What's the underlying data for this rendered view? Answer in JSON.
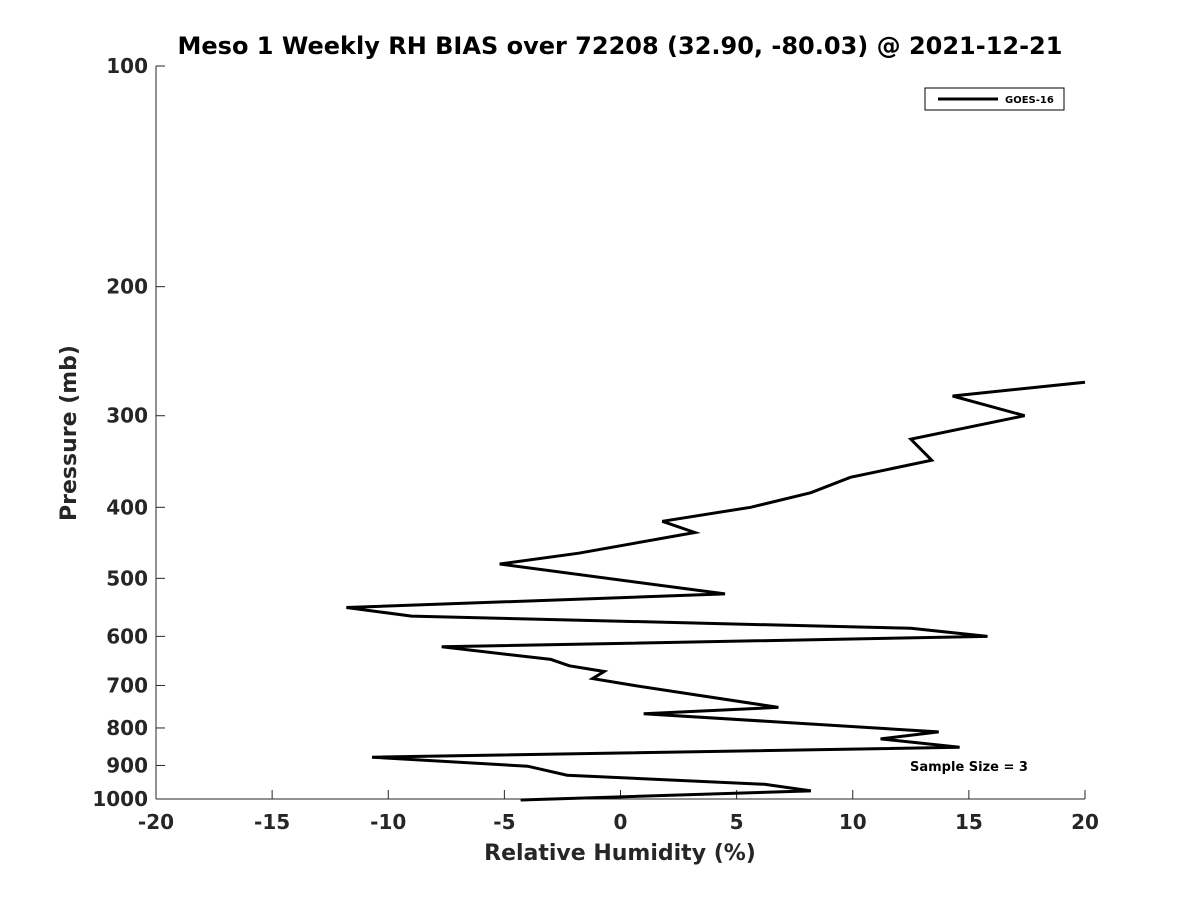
{
  "chart_data": {
    "type": "line",
    "title": "Meso 1 Weekly RH BIAS over 72208 (32.90, -80.03) @ 2021-12-21",
    "xlabel": "Relative Humidity (%)",
    "ylabel": "Pressure (mb)",
    "xlim": [
      -20,
      20
    ],
    "ylim": [
      100,
      1000
    ],
    "y_scale": "log",
    "y_reversed": true,
    "x_ticks": [
      "-20",
      "-15",
      "-10",
      "-5",
      "0",
      "5",
      "10",
      "15",
      "20"
    ],
    "y_ticks": [
      "100",
      "200",
      "300",
      "400",
      "500",
      "600",
      "700",
      "800",
      "900",
      "1000"
    ],
    "grid": false,
    "legend_position": "top-right",
    "series": [
      {
        "name": "GOES-16",
        "color": "#000000",
        "x": [
          20.0,
          14.3,
          17.4,
          12.5,
          13.4,
          9.9,
          8.2,
          5.6,
          1.8,
          3.2,
          -1.8,
          -5.2,
          4.5,
          -11.8,
          -9.0,
          12.5,
          15.8,
          -7.7,
          -3.0,
          -2.2,
          -0.7,
          -1.2,
          0.6,
          3.1,
          6.8,
          1.0,
          13.7,
          11.2,
          14.6,
          -10.7,
          -4.0,
          -2.3,
          6.2,
          8.2,
          -4.3
        ],
        "y": [
          270,
          282,
          300,
          323,
          345,
          364,
          382,
          400,
          418,
          433,
          462,
          478,
          525,
          548,
          563,
          585,
          600,
          620,
          645,
          658,
          670,
          685,
          700,
          720,
          750,
          765,
          810,
          828,
          850,
          877,
          902,
          928,
          955,
          975,
          1003
        ]
      }
    ],
    "annotations": [
      "Sample Size = 3"
    ]
  }
}
